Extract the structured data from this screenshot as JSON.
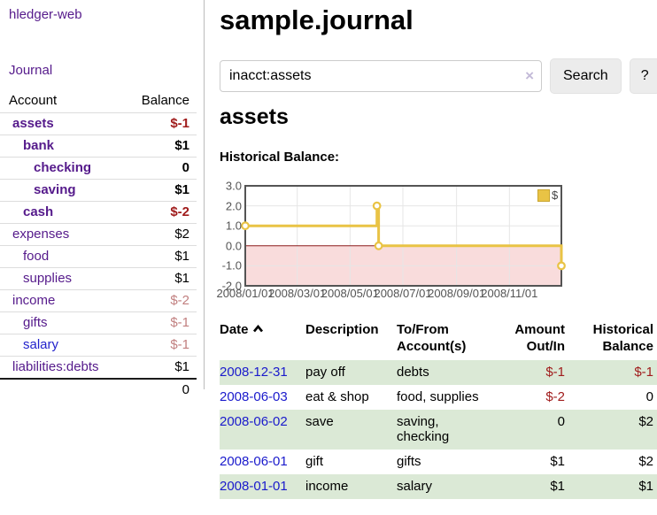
{
  "app": {
    "brand": "hledger-web",
    "nav": {
      "journal": "Journal"
    }
  },
  "sidebar": {
    "header": {
      "account": "Account",
      "balance": "Balance"
    },
    "accounts": [
      {
        "name": "assets",
        "balance": "$-1",
        "depth": 0,
        "bold": true,
        "unvisited": false
      },
      {
        "name": "bank",
        "balance": "$1",
        "depth": 1,
        "bold": true,
        "unvisited": false
      },
      {
        "name": "checking",
        "balance": "0",
        "depth": 2,
        "bold": true,
        "unvisited": false
      },
      {
        "name": "saving",
        "balance": "$1",
        "depth": 2,
        "bold": true,
        "unvisited": false
      },
      {
        "name": "cash",
        "balance": "$-2",
        "depth": 1,
        "bold": true,
        "unvisited": false
      },
      {
        "name": "expenses",
        "balance": "$2",
        "depth": 0,
        "bold": false,
        "unvisited": false
      },
      {
        "name": "food",
        "balance": "$1",
        "depth": 1,
        "bold": false,
        "unvisited": false
      },
      {
        "name": "supplies",
        "balance": "$1",
        "depth": 1,
        "bold": false,
        "unvisited": false
      },
      {
        "name": "income",
        "balance": "$-2",
        "depth": 0,
        "bold": false,
        "unvisited": false
      },
      {
        "name": "gifts",
        "balance": "$-1",
        "depth": 1,
        "bold": false,
        "unvisited": false
      },
      {
        "name": "salary",
        "balance": "$-1",
        "depth": 1,
        "bold": false,
        "unvisited": true
      },
      {
        "name": "liabilities:debts",
        "balance": "$1",
        "depth": 0,
        "bold": false,
        "unvisited": false
      }
    ],
    "total": "0"
  },
  "main": {
    "title": "sample.journal",
    "search": {
      "value": "inacct:assets",
      "clear_label": "×",
      "submit_label": "Search",
      "help_label": "?"
    },
    "account_heading": "assets",
    "chart_title": "Historical Balance:"
  },
  "chart_data": {
    "type": "line",
    "style": "step",
    "title": "Historical Balance",
    "series": [
      {
        "name": "$",
        "points": [
          {
            "date": "2008/01/01",
            "value": 1
          },
          {
            "date": "2008/06/01",
            "value": 2
          },
          {
            "date": "2008/06/03",
            "value": 0
          },
          {
            "date": "2008/12/31",
            "value": -1
          }
        ]
      }
    ],
    "x_range": [
      "2008/01/01",
      "2008/12/31"
    ],
    "ylim": [
      -2,
      3
    ],
    "yticks": [
      3,
      2,
      1,
      0,
      -1,
      -2
    ],
    "ytick_labels": [
      "3.0",
      "2.0",
      "1.0",
      "0.0",
      "-1.0",
      "-2.0"
    ],
    "xticks": [
      "2008/01/01",
      "2008/03/01",
      "2008/05/01",
      "2008/07/01",
      "2008/09/01",
      "2008/11/01"
    ],
    "grid": true,
    "negative_region": true,
    "legend": {
      "label": "$",
      "position": "top-right"
    }
  },
  "register": {
    "headers": {
      "date": "Date",
      "sort": "ascending",
      "description": "Description",
      "accounts": "To/From Account(s)",
      "amount": "Amount Out/In",
      "balance": "Historical Balance"
    },
    "rows": [
      {
        "date": "2008-12-31",
        "description": "pay off",
        "accounts": "debts",
        "amount": "$-1",
        "balance": "$-1"
      },
      {
        "date": "2008-06-03",
        "description": "eat & shop",
        "accounts": "food, supplies",
        "amount": "$-2",
        "balance": "0"
      },
      {
        "date": "2008-06-02",
        "description": "save",
        "accounts": "saving, checking",
        "amount": "0",
        "balance": "$2"
      },
      {
        "date": "2008-06-01",
        "description": "gift",
        "accounts": "gifts",
        "amount": "$1",
        "balance": "$2"
      },
      {
        "date": "2008-01-01",
        "description": "income",
        "accounts": "salary",
        "amount": "$1",
        "balance": "$1"
      }
    ]
  },
  "colors": {
    "link_purple": "#551a8b",
    "link_blue": "#2222cc",
    "date_link_blue": "#1a1acc",
    "negative_strong": "#a01c1c",
    "negative_faded": "#c17f7f",
    "row_green": "#dbe9d6",
    "chart_line": "#e9c345",
    "chart_marker_fill": "#ffffff",
    "chart_negative_bg": "#f9dcdc",
    "chart_zero_line": "#8b1a1a",
    "chart_border": "#545454",
    "chart_grid": "#e6e6e6"
  }
}
